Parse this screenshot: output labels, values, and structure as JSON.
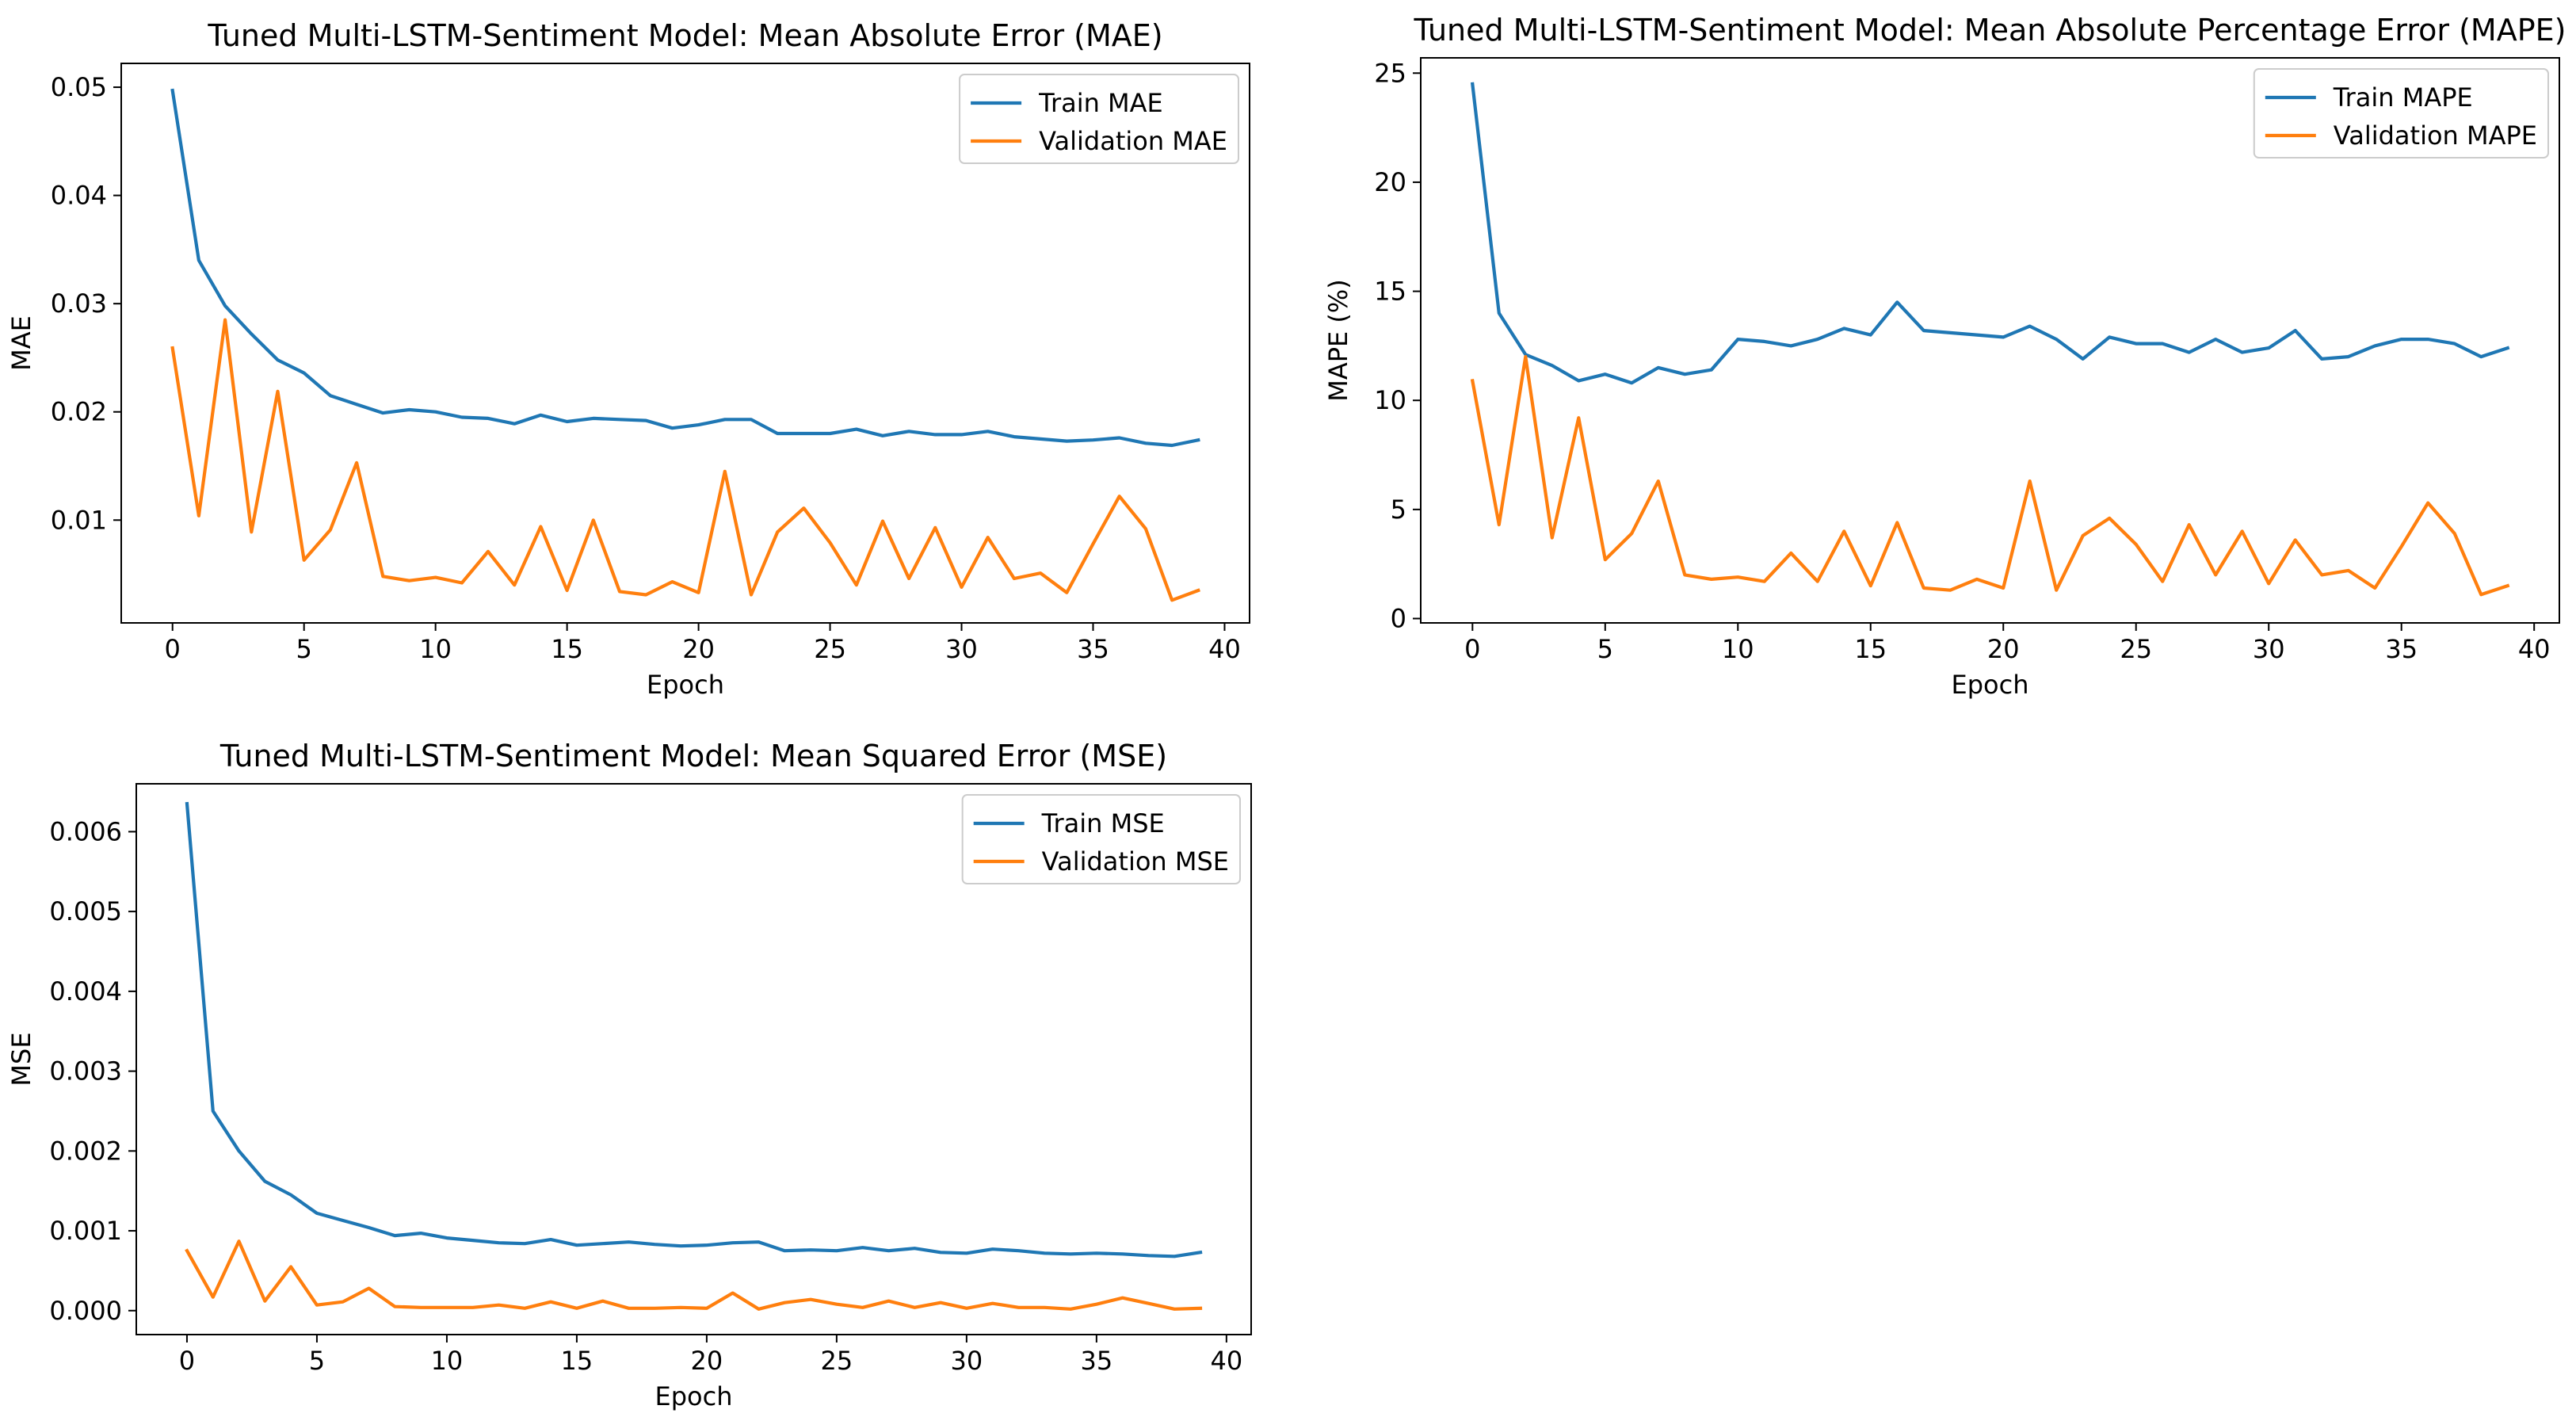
{
  "colors": {
    "train": "#1f77b4",
    "validation": "#ff7f0e",
    "axis": "#000000",
    "legend_border": "#cccccc"
  },
  "chart_data": [
    {
      "type": "line",
      "title": "Tuned Multi-LSTM-Sentiment Model: Mean Absolute Error (MAE)",
      "xlabel": "Epoch",
      "ylabel": "MAE",
      "xlim": [
        -1.95,
        40.95
      ],
      "ylim": [
        0.0005,
        0.0522
      ],
      "xticks": [
        0,
        5,
        10,
        15,
        20,
        25,
        30,
        35,
        40
      ],
      "yticks": [
        0.01,
        0.02,
        0.03,
        0.04,
        0.05
      ],
      "ytick_labels": [
        "0.01",
        "0.02",
        "0.03",
        "0.04",
        "0.05"
      ],
      "legend_position": "top-right",
      "x": [
        0,
        1,
        2,
        3,
        4,
        5,
        6,
        7,
        8,
        9,
        10,
        11,
        12,
        13,
        14,
        15,
        16,
        17,
        18,
        19,
        20,
        21,
        22,
        23,
        24,
        25,
        26,
        27,
        28,
        29,
        30,
        31,
        32,
        33,
        34,
        35,
        36,
        37,
        38,
        39
      ],
      "series": [
        {
          "name": "Train MAE",
          "color_key": "train",
          "values": [
            0.0497,
            0.034,
            0.0298,
            0.0272,
            0.0248,
            0.0236,
            0.0215,
            0.0207,
            0.0199,
            0.0202,
            0.02,
            0.0195,
            0.0194,
            0.0189,
            0.0197,
            0.0191,
            0.0194,
            0.0193,
            0.0192,
            0.0185,
            0.0188,
            0.0193,
            0.0193,
            0.018,
            0.018,
            0.018,
            0.0184,
            0.0178,
            0.0182,
            0.0179,
            0.0179,
            0.0182,
            0.0177,
            0.0175,
            0.0173,
            0.0174,
            0.0176,
            0.0171,
            0.0169,
            0.0174
          ]
        },
        {
          "name": "Validation MAE",
          "color_key": "validation",
          "values": [
            0.0259,
            0.0104,
            0.0285,
            0.0089,
            0.0219,
            0.0063,
            0.0091,
            0.0153,
            0.0048,
            0.0044,
            0.0047,
            0.0042,
            0.0071,
            0.004,
            0.0094,
            0.0035,
            0.01,
            0.0034,
            0.0031,
            0.0043,
            0.0033,
            0.0145,
            0.0031,
            0.0089,
            0.0111,
            0.0079,
            0.004,
            0.0099,
            0.0046,
            0.0093,
            0.0038,
            0.0084,
            0.0046,
            0.0051,
            0.0033,
            0.0078,
            0.0122,
            0.0092,
            0.0026,
            0.0035
          ]
        }
      ]
    },
    {
      "type": "line",
      "title": "Tuned Multi-LSTM-Sentiment Model: Mean Absolute Percentage Error (MAPE)",
      "xlabel": "Epoch",
      "ylabel": "MAPE (%)",
      "xlim": [
        -1.95,
        40.95
      ],
      "ylim": [
        -0.2,
        25.7
      ],
      "xticks": [
        0,
        5,
        10,
        15,
        20,
        25,
        30,
        35,
        40
      ],
      "yticks": [
        0,
        5,
        10,
        15,
        20,
        25
      ],
      "ytick_labels": [
        "0",
        "5",
        "10",
        "15",
        "20",
        "25"
      ],
      "legend_position": "top-right",
      "x": [
        0,
        1,
        2,
        3,
        4,
        5,
        6,
        7,
        8,
        9,
        10,
        11,
        12,
        13,
        14,
        15,
        16,
        17,
        18,
        19,
        20,
        21,
        22,
        23,
        24,
        25,
        26,
        27,
        28,
        29,
        30,
        31,
        32,
        33,
        34,
        35,
        36,
        37,
        38,
        39
      ],
      "series": [
        {
          "name": "Train MAPE",
          "color_key": "train",
          "values": [
            24.5,
            14.0,
            12.1,
            11.6,
            10.9,
            11.2,
            10.8,
            11.5,
            11.2,
            11.4,
            12.8,
            12.7,
            12.5,
            12.8,
            13.3,
            13.0,
            14.5,
            13.2,
            13.1,
            13.0,
            12.9,
            13.4,
            12.8,
            11.9,
            12.9,
            12.6,
            12.6,
            12.2,
            12.8,
            12.2,
            12.4,
            13.2,
            11.9,
            12.0,
            12.5,
            12.8,
            12.8,
            12.6,
            12.0,
            12.4
          ]
        },
        {
          "name": "Validation MAPE",
          "color_key": "validation",
          "values": [
            10.9,
            4.3,
            12.0,
            3.7,
            9.2,
            2.7,
            3.9,
            6.3,
            2.0,
            1.8,
            1.9,
            1.7,
            3.0,
            1.7,
            4.0,
            1.5,
            4.4,
            1.4,
            1.3,
            1.8,
            1.4,
            6.3,
            1.3,
            3.8,
            4.6,
            3.4,
            1.7,
            4.3,
            2.0,
            4.0,
            1.6,
            3.6,
            2.0,
            2.2,
            1.4,
            3.3,
            5.3,
            3.9,
            1.1,
            1.5
          ]
        }
      ]
    },
    {
      "type": "line",
      "title": "Tuned Multi-LSTM-Sentiment Model: Mean Squared Error (MSE)",
      "xlabel": "Epoch",
      "ylabel": "MSE",
      "xlim": [
        -1.95,
        40.95
      ],
      "ylim": [
        -0.0003,
        0.0066
      ],
      "xticks": [
        0,
        5,
        10,
        15,
        20,
        25,
        30,
        35,
        40
      ],
      "yticks": [
        0.0,
        0.001,
        0.002,
        0.003,
        0.004,
        0.005,
        0.006
      ],
      "ytick_labels": [
        "0.000",
        "0.001",
        "0.002",
        "0.003",
        "0.004",
        "0.005",
        "0.006"
      ],
      "legend_position": "top-right",
      "x": [
        0,
        1,
        2,
        3,
        4,
        5,
        6,
        7,
        8,
        9,
        10,
        11,
        12,
        13,
        14,
        15,
        16,
        17,
        18,
        19,
        20,
        21,
        22,
        23,
        24,
        25,
        26,
        27,
        28,
        29,
        30,
        31,
        32,
        33,
        34,
        35,
        36,
        37,
        38,
        39
      ],
      "series": [
        {
          "name": "Train MSE",
          "color_key": "train",
          "values": [
            0.00635,
            0.0025,
            0.002,
            0.00162,
            0.00145,
            0.00122,
            0.00113,
            0.00104,
            0.00094,
            0.00097,
            0.00091,
            0.00088,
            0.00085,
            0.00084,
            0.00089,
            0.00082,
            0.00084,
            0.00086,
            0.00083,
            0.00081,
            0.00082,
            0.00085,
            0.00086,
            0.00075,
            0.00076,
            0.00075,
            0.00079,
            0.00075,
            0.00078,
            0.00073,
            0.00072,
            0.00077,
            0.00075,
            0.00072,
            0.00071,
            0.00072,
            0.00071,
            0.00069,
            0.00068,
            0.00073
          ]
        },
        {
          "name": "Validation MSE",
          "color_key": "validation",
          "values": [
            0.00075,
            0.00017,
            0.00087,
            0.00012,
            0.00055,
            7e-05,
            0.00011,
            0.00028,
            5e-05,
            4e-05,
            4e-05,
            4e-05,
            7e-05,
            3e-05,
            0.00011,
            3e-05,
            0.00012,
            3e-05,
            3e-05,
            4e-05,
            3e-05,
            0.00022,
            2e-05,
            0.0001,
            0.00014,
            8e-05,
            4e-05,
            0.00012,
            4e-05,
            0.0001,
            3e-05,
            9e-05,
            4e-05,
            4e-05,
            2e-05,
            8e-05,
            0.00016,
            9e-05,
            2e-05,
            3e-05
          ]
        }
      ]
    }
  ]
}
